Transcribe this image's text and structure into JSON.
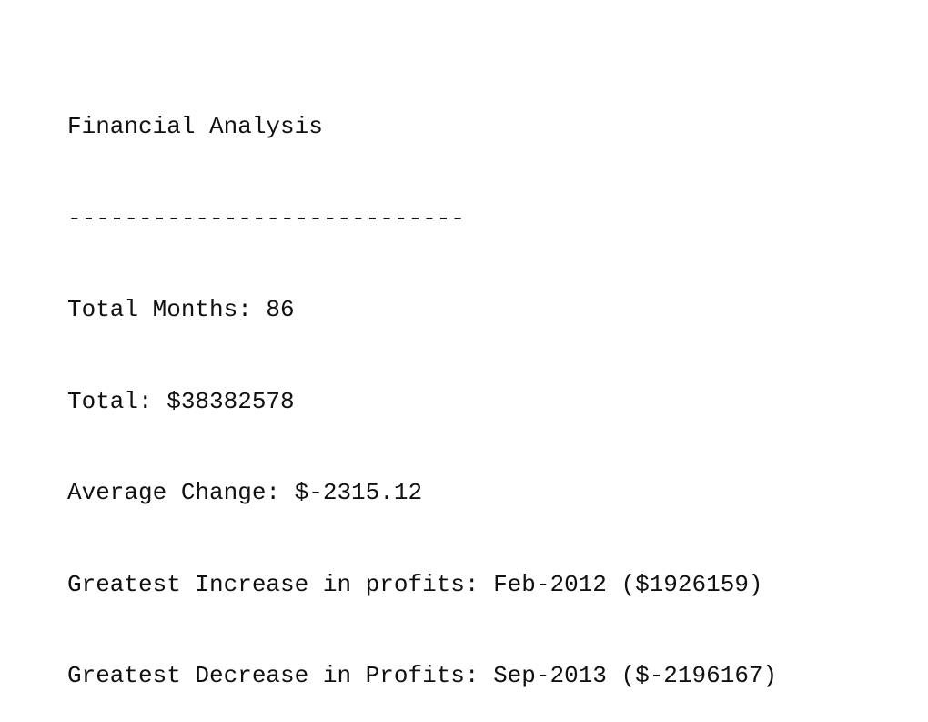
{
  "report": {
    "title": "Financial Analysis",
    "divider": "----------------------------",
    "total_months_line": "Total Months: 86",
    "total_line": "Total: $38382578",
    "average_change_line": "Average Change: $-2315.12",
    "greatest_increase_line": "Greatest Increase in profits: Feb-2012 ($1926159)",
    "greatest_decrease_line": "Greatest Decrease in Profits: Sep-2013 ($-2196167)"
  },
  "colors": {
    "background": "#ffffff",
    "text": "#111111"
  }
}
